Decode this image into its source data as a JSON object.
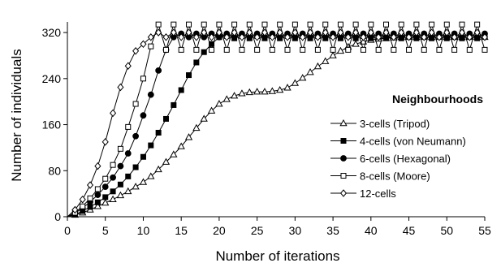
{
  "chart_data": {
    "type": "line",
    "xlabel": "Number of iterations",
    "ylabel": "Number of individuals",
    "xlim": [
      0,
      55
    ],
    "ylim": [
      0,
      330
    ],
    "xticks": [
      0,
      5,
      10,
      15,
      20,
      25,
      30,
      35,
      40,
      45,
      50,
      55
    ],
    "yticks": [
      0,
      80,
      160,
      240,
      320
    ],
    "grid": false,
    "legend": {
      "title": "Neighbourhoods",
      "placement": "right"
    },
    "series": [
      {
        "name": "3-cells (Tripod)",
        "marker": "open-triangle",
        "x": [
          0,
          1,
          2,
          3,
          4,
          5,
          6,
          7,
          8,
          9,
          10,
          11,
          12,
          13,
          14,
          15,
          16,
          17,
          18,
          19,
          20,
          21,
          22,
          23,
          24,
          25,
          26,
          27,
          28,
          29,
          30,
          31,
          32,
          33,
          34,
          35,
          36,
          37,
          38,
          39,
          40,
          41,
          42,
          43,
          44,
          45,
          46,
          47,
          48,
          49,
          50,
          51,
          52,
          53,
          54,
          55
        ],
        "y": [
          0,
          3,
          7,
          12,
          18,
          24,
          30,
          37,
          44,
          52,
          60,
          70,
          82,
          95,
          108,
          122,
          138,
          154,
          170,
          184,
          196,
          204,
          210,
          214,
          216,
          217,
          217,
          218,
          220,
          224,
          232,
          241,
          251,
          261,
          270,
          280,
          288,
          295,
          300,
          304,
          307,
          309,
          310,
          311,
          312,
          312,
          312,
          312,
          312,
          312,
          312,
          312,
          312,
          312,
          312,
          312
        ]
      },
      {
        "name": "4-cells (von Neumann)",
        "marker": "filled-square",
        "x": [
          0,
          1,
          2,
          3,
          4,
          5,
          6,
          7,
          8,
          9,
          10,
          11,
          12,
          13,
          14,
          15,
          16,
          17,
          18,
          19,
          20,
          21,
          22,
          23,
          24,
          25,
          26,
          27,
          28,
          29,
          30,
          31,
          32,
          33,
          34,
          35,
          36,
          37,
          38,
          39,
          40,
          41,
          42,
          43,
          44,
          45,
          46,
          47,
          48,
          49,
          50,
          51,
          52,
          53,
          54,
          55
        ],
        "y": [
          0,
          4,
          10,
          17,
          25,
          34,
          44,
          56,
          70,
          86,
          104,
          124,
          146,
          170,
          194,
          220,
          246,
          268,
          286,
          300,
          312,
          314,
          310,
          314,
          310,
          314,
          310,
          314,
          310,
          314,
          310,
          314,
          310,
          314,
          310,
          314,
          310,
          314,
          310,
          314,
          310,
          314,
          310,
          314,
          310,
          314,
          310,
          314,
          310,
          314,
          310,
          314,
          310,
          314,
          310,
          314
        ]
      },
      {
        "name": "6-cells (Hexagonal)",
        "marker": "filled-circle",
        "x": [
          0,
          1,
          2,
          3,
          4,
          5,
          6,
          7,
          8,
          9,
          10,
          11,
          12,
          13,
          14,
          15,
          16,
          17,
          18,
          19,
          20,
          21,
          22,
          23,
          24,
          25,
          26,
          27,
          28,
          29,
          30,
          31,
          32,
          33,
          34,
          35,
          36,
          37,
          38,
          39,
          40,
          41,
          42,
          43,
          44,
          45,
          46,
          47,
          48,
          49,
          50,
          51,
          52,
          53,
          54,
          55
        ],
        "y": [
          0,
          6,
          15,
          26,
          38,
          52,
          68,
          88,
          110,
          140,
          176,
          212,
          254,
          290,
          312,
          318,
          312,
          318,
          312,
          318,
          312,
          318,
          312,
          318,
          312,
          318,
          312,
          318,
          312,
          318,
          312,
          318,
          312,
          318,
          312,
          318,
          312,
          318,
          312,
          318,
          312,
          318,
          312,
          318,
          312,
          318,
          312,
          318,
          312,
          318,
          312,
          318,
          312,
          318,
          312,
          318
        ]
      },
      {
        "name": "8-cells (Moore)",
        "marker": "open-square",
        "x": [
          0,
          1,
          2,
          3,
          4,
          5,
          6,
          7,
          8,
          9,
          10,
          11,
          12,
          13,
          14,
          15,
          16,
          17,
          18,
          19,
          20,
          21,
          22,
          23,
          24,
          25,
          26,
          27,
          28,
          29,
          30,
          31,
          32,
          33,
          34,
          35,
          36,
          37,
          38,
          39,
          40,
          41,
          42,
          43,
          44,
          45,
          46,
          47,
          48,
          49,
          50,
          51,
          52,
          53,
          54,
          55
        ],
        "y": [
          0,
          7,
          18,
          32,
          48,
          66,
          90,
          118,
          156,
          196,
          240,
          296,
          334,
          290,
          334,
          290,
          334,
          290,
          334,
          290,
          334,
          290,
          334,
          290,
          334,
          290,
          334,
          290,
          334,
          290,
          334,
          290,
          334,
          290,
          334,
          290,
          334,
          290,
          334,
          290,
          334,
          290,
          334,
          290,
          334,
          290,
          334,
          290,
          334,
          290,
          334,
          290,
          334,
          290,
          334,
          290
        ]
      },
      {
        "name": "12-cells",
        "marker": "open-diamond",
        "x": [
          0,
          1,
          2,
          3,
          4,
          5,
          6,
          7,
          8,
          9,
          10,
          11,
          12,
          13,
          14,
          15,
          16,
          17,
          18,
          19,
          20,
          21,
          22,
          23,
          24,
          25,
          26,
          27,
          28,
          29,
          30,
          31,
          32,
          33,
          34,
          35,
          36,
          37,
          38,
          39,
          40,
          41,
          42,
          43,
          44,
          45,
          46,
          47,
          48,
          49,
          50,
          51,
          52,
          53,
          54,
          55
        ],
        "y": [
          0,
          12,
          30,
          55,
          88,
          130,
          180,
          225,
          262,
          288,
          300,
          312,
          320,
          312,
          320,
          312,
          320,
          312,
          320,
          312,
          320,
          312,
          320,
          312,
          320,
          312,
          320,
          312,
          320,
          312,
          320,
          312,
          320,
          312,
          320,
          312,
          320,
          312,
          320,
          312,
          320,
          312,
          320,
          312,
          320,
          312,
          320,
          312,
          320,
          312,
          320,
          312,
          320,
          312,
          320,
          312
        ]
      }
    ]
  }
}
